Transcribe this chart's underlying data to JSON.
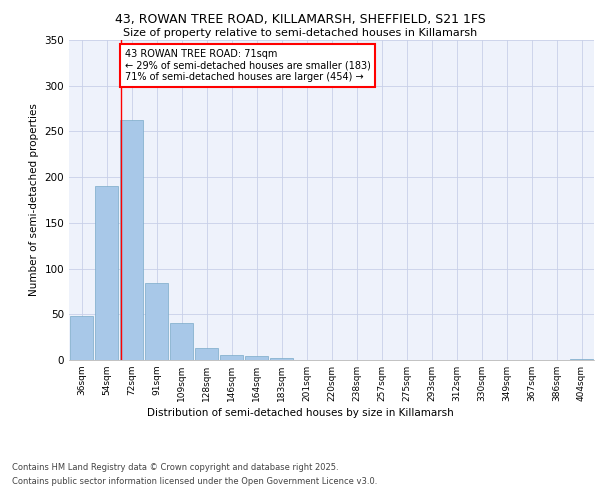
{
  "title_line1": "43, ROWAN TREE ROAD, KILLAMARSH, SHEFFIELD, S21 1FS",
  "title_line2": "Size of property relative to semi-detached houses in Killamarsh",
  "xlabel": "Distribution of semi-detached houses by size in Killamarsh",
  "ylabel": "Number of semi-detached properties",
  "categories": [
    "36sqm",
    "54sqm",
    "72sqm",
    "91sqm",
    "109sqm",
    "128sqm",
    "146sqm",
    "164sqm",
    "183sqm",
    "201sqm",
    "220sqm",
    "238sqm",
    "257sqm",
    "275sqm",
    "293sqm",
    "312sqm",
    "330sqm",
    "349sqm",
    "367sqm",
    "386sqm",
    "404sqm"
  ],
  "values": [
    48,
    190,
    262,
    84,
    40,
    13,
    5,
    4,
    2,
    0,
    0,
    0,
    0,
    0,
    0,
    0,
    0,
    0,
    0,
    0,
    1
  ],
  "bar_color": "#a8c8e8",
  "bar_edge_color": "#7aaac8",
  "red_line_label": "43 ROWAN TREE ROAD: 71sqm",
  "smaller_pct": 29,
  "smaller_count": 183,
  "larger_pct": 71,
  "larger_count": 454,
  "ylim": [
    0,
    350
  ],
  "yticks": [
    0,
    50,
    100,
    150,
    200,
    250,
    300,
    350
  ],
  "bg_color": "#eef2fb",
  "grid_color": "#c8d0e8",
  "footer_line1": "Contains HM Land Registry data © Crown copyright and database right 2025.",
  "footer_line2": "Contains public sector information licensed under the Open Government Licence v3.0."
}
